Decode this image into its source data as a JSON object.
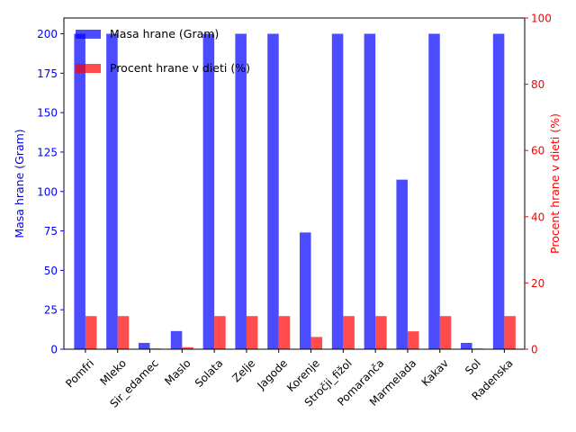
{
  "chart_data": {
    "type": "bar",
    "title": "",
    "xlabel": "",
    "categories": [
      "Pomfri",
      "Mleko",
      "Sir_edamec",
      "Maslo",
      "Solata",
      "Zelje",
      "Jagode",
      "Korenje",
      "Stročji_fižol",
      "Pomaranča",
      "Marmelada",
      "Kakav",
      "Sol",
      "Radenska"
    ],
    "series": [
      {
        "name": "Masa hrane (Gram)",
        "axis": "left",
        "color": "#0000ff",
        "opacity": 0.7,
        "values": [
          200,
          200,
          4,
          11.5,
          200,
          200,
          200,
          74,
          200,
          200,
          107.5,
          200,
          4,
          200
        ]
      },
      {
        "name": "Procent hrane v dieti (%)",
        "axis": "right",
        "color": "#ff0000",
        "opacity": 0.7,
        "values": [
          10,
          10,
          0.2,
          0.6,
          10,
          10,
          10,
          3.7,
          10,
          10,
          5.4,
          10,
          0.2,
          10
        ]
      }
    ],
    "y_left": {
      "label": "Masa hrane (Gram)",
      "color": "#0000ff",
      "ylim": [
        0,
        210
      ],
      "ticks": [
        0,
        25,
        50,
        75,
        100,
        125,
        150,
        175,
        200
      ]
    },
    "y_right": {
      "label": "Procent hrane v dieti (%)",
      "color": "#ff0000",
      "ylim": [
        0,
        100
      ],
      "ticks": [
        0,
        20,
        40,
        60,
        80,
        100
      ]
    },
    "legend": {
      "placement": "top-left"
    },
    "grid": false
  }
}
